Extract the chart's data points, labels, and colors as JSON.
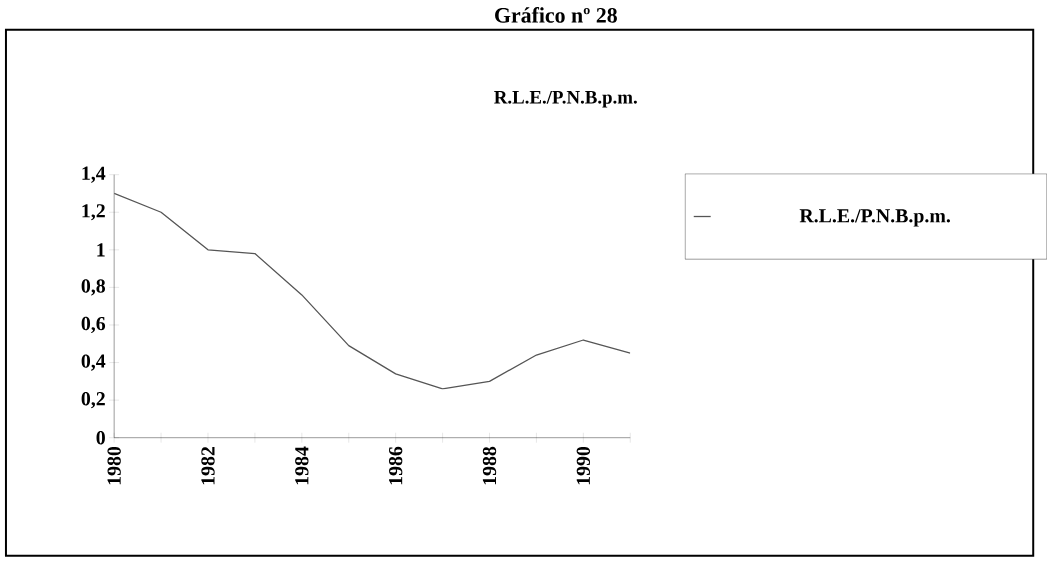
{
  "chart_data": {
    "type": "line",
    "title": "R.L.E./P.N.B.p.m.",
    "annotations": [
      "Gráfico nº 28"
    ],
    "x": [
      1980,
      1981,
      1982,
      1983,
      1984,
      1985,
      1986,
      1987,
      1988,
      1989,
      1990,
      1991
    ],
    "series": [
      {
        "name": "R.L.E./P.N.B.p.m.",
        "color": "#555555",
        "values": [
          1.3,
          1.2,
          1.0,
          0.98,
          0.76,
          0.49,
          0.34,
          0.26,
          0.3,
          0.44,
          0.52,
          0.45
        ]
      }
    ],
    "xlim": [
      1980,
      1991
    ],
    "xticks": [
      1980,
      {
        "value": 1981,
        "label": null
      },
      1982,
      {
        "value": 1983,
        "label": null
      },
      1984,
      {
        "value": 1985,
        "label": null
      },
      1986,
      {
        "value": 1987,
        "label": null
      },
      1988,
      {
        "value": 1989,
        "label": null
      },
      1990,
      {
        "value": 1991,
        "label": null
      }
    ],
    "ylim": [
      0,
      1.4
    ],
    "yticks": [
      0,
      {
        "value": 0.2,
        "label": "0,2"
      },
      {
        "value": 0.4,
        "label": "0,4"
      },
      {
        "value": 0.6,
        "label": "0,6"
      },
      {
        "value": 0.8,
        "label": "0,8"
      },
      1,
      {
        "value": 1.2,
        "label": "1,2"
      },
      {
        "value": 1.4,
        "label": "1,4"
      }
    ],
    "grid": false,
    "legend": "top right",
    "marker": "none",
    "line_style": "solid"
  }
}
